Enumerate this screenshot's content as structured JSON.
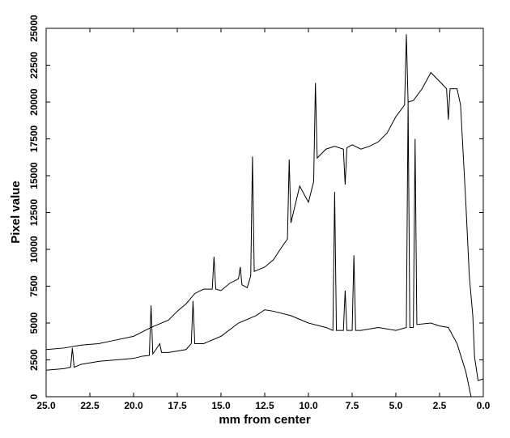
{
  "chart_data": {
    "type": "line",
    "xlabel": "mm from center",
    "ylabel": "Pixel value",
    "xlim": [
      25,
      0
    ],
    "ylim": [
      0,
      25000
    ],
    "xticks": [
      {
        "value": 25,
        "label": "25.0"
      },
      {
        "value": 22.5,
        "label": "22.5"
      },
      {
        "value": 20,
        "label": "20.0"
      },
      {
        "value": 17.5,
        "label": "17.5"
      },
      {
        "value": 15,
        "label": "15.0"
      },
      {
        "value": 12.5,
        "label": "12.5"
      },
      {
        "value": 10,
        "label": "10.0"
      },
      {
        "value": 7.5,
        "label": "7.5"
      },
      {
        "value": 5,
        "label": "5.0"
      },
      {
        "value": 2.5,
        "label": "2.5"
      },
      {
        "value": 0,
        "label": "0.0"
      }
    ],
    "yticks": [
      0,
      2500,
      5000,
      7500,
      10000,
      12500,
      15000,
      17500,
      20000,
      22500,
      25000
    ],
    "grid": false,
    "series": [
      {
        "color": "#000000",
        "x": [
          25,
          24,
          23,
          22,
          21,
          20,
          19.5,
          19,
          18,
          17.5,
          17,
          16.5,
          16,
          15.5,
          15.4,
          15.3,
          15,
          14.5,
          14,
          13.9,
          13.8,
          13.5,
          13.3,
          13.2,
          13.1,
          12.5,
          12,
          11.5,
          11.2,
          11.1,
          11,
          10.5,
          10,
          9.7,
          9.6,
          9.5,
          9,
          8.5,
          8,
          7.9,
          7.8,
          7.5,
          7,
          6.5,
          6,
          5.5,
          5,
          4.5,
          4.4,
          4.3,
          4,
          3.5,
          3,
          2.5,
          2.1,
          2,
          1.9,
          1.5,
          1.3,
          1,
          0.8,
          0.6,
          0.5,
          0.3,
          0
        ],
        "values": [
          3200,
          3300,
          3500,
          3600,
          3850,
          4100,
          4400,
          4700,
          5200,
          5800,
          6300,
          7000,
          7300,
          7300,
          9500,
          7300,
          7200,
          7700,
          8000,
          8800,
          7600,
          7400,
          8200,
          16300,
          8500,
          8800,
          9300,
          10200,
          10700,
          16100,
          11800,
          14300,
          13200,
          14600,
          21300,
          16200,
          16800,
          17000,
          16800,
          14400,
          16900,
          17100,
          16800,
          17000,
          17300,
          17900,
          19000,
          19800,
          24600,
          20000,
          20100,
          20900,
          22000,
          21400,
          20900,
          18800,
          20900,
          20900,
          19800,
          13200,
          8200,
          5500,
          2700,
          1100,
          1200
        ]
      },
      {
        "color": "#000000",
        "x": [
          25,
          24,
          23.6,
          23.5,
          23.4,
          23,
          22,
          21,
          20,
          19.5,
          19.1,
          19,
          18.9,
          18.5,
          18.4,
          18,
          17,
          16.7,
          16.6,
          16.5,
          16,
          15,
          14,
          13,
          12.5,
          12,
          11,
          10,
          9,
          8.6,
          8.5,
          8.4,
          8,
          7.9,
          7.8,
          7.5,
          7.4,
          7.3,
          7,
          6,
          5,
          4.4,
          4.3,
          4.2,
          4,
          3.9,
          3.8,
          3,
          2.5,
          2,
          1.5,
          1,
          0.7,
          0
        ],
        "values": [
          1800,
          1900,
          2000,
          3300,
          2000,
          2200,
          2400,
          2500,
          2600,
          2750,
          2800,
          6200,
          2900,
          3600,
          3000,
          3000,
          3200,
          3600,
          6500,
          3600,
          3600,
          4100,
          5000,
          5500,
          5900,
          5800,
          5500,
          5000,
          4700,
          4500,
          13900,
          4500,
          4500,
          7200,
          4500,
          4500,
          9600,
          4500,
          4500,
          4700,
          4500,
          4700,
          20000,
          4700,
          4700,
          17500,
          4900,
          5000,
          4800,
          4700,
          3600,
          1700,
          0,
          0
        ]
      }
    ]
  }
}
